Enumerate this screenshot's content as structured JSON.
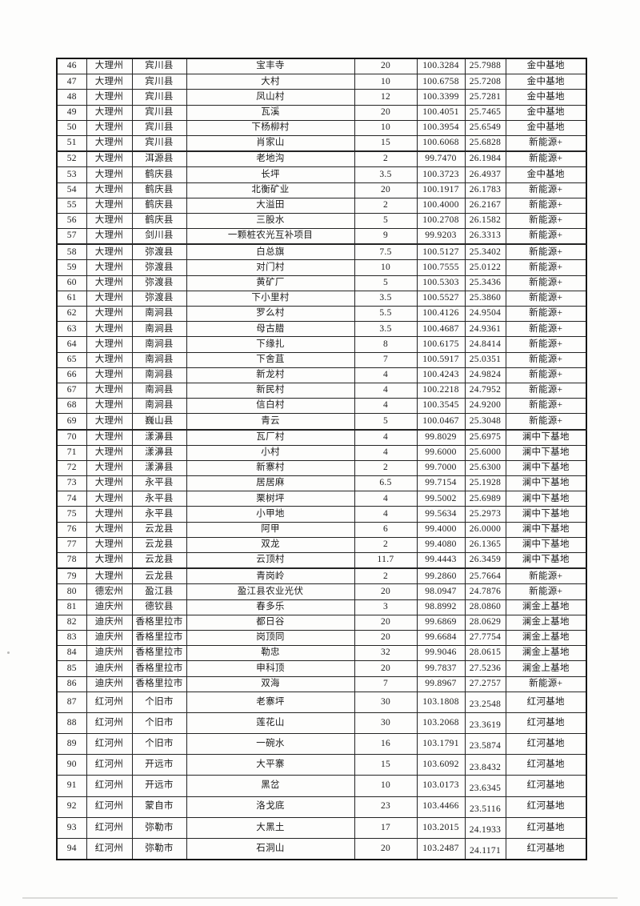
{
  "colors": {
    "paper": "#fdfdfc",
    "ink": "#1b1b1b",
    "table_border": "#242424"
  },
  "table": {
    "rows": [
      [
        "46",
        "大理州",
        "宾川县",
        "宝丰寺",
        "20",
        "100.3284",
        "25.7988",
        "金中基地"
      ],
      [
        "47",
        "大理州",
        "宾川县",
        "大村",
        "10",
        "100.6758",
        "25.7208",
        "金中基地"
      ],
      [
        "48",
        "大理州",
        "宾川县",
        "凤山村",
        "12",
        "100.3399",
        "25.7281",
        "金中基地"
      ],
      [
        "49",
        "大理州",
        "宾川县",
        "瓦溪",
        "20",
        "100.4051",
        "25.7465",
        "金中基地"
      ],
      [
        "50",
        "大理州",
        "宾川县",
        "下杨柳村",
        "10",
        "100.3954",
        "25.6549",
        "金中基地"
      ],
      [
        "51",
        "大理州",
        "宾川县",
        "肖家山",
        "15",
        "100.6068",
        "25.6828",
        "新能源+"
      ],
      [
        "52",
        "大理州",
        "洱源县",
        "老地沟",
        "2",
        "99.7470",
        "26.1984",
        "新能源+"
      ],
      [
        "53",
        "大理州",
        "鹤庆县",
        "长坪",
        "3.5",
        "100.3723",
        "26.4937",
        "金中基地"
      ],
      [
        "54",
        "大理州",
        "鹤庆县",
        "北衡矿业",
        "20",
        "100.1917",
        "26.1783",
        "新能源+"
      ],
      [
        "55",
        "大理州",
        "鹤庆县",
        "大溢田",
        "2",
        "100.4000",
        "26.2167",
        "新能源+"
      ],
      [
        "56",
        "大理州",
        "鹤庆县",
        "三股水",
        "5",
        "100.2708",
        "26.1582",
        "新能源+"
      ],
      [
        "57",
        "大理州",
        "剑川县",
        "一颗桩农光互补项目",
        "9",
        "99.9203",
        "26.3313",
        "新能源+"
      ],
      [
        "58",
        "大理州",
        "弥渡县",
        "白总旗",
        "7.5",
        "100.5127",
        "25.3402",
        "新能源+"
      ],
      [
        "59",
        "大理州",
        "弥渡县",
        "对门村",
        "10",
        "100.7555",
        "25.0122",
        "新能源+"
      ],
      [
        "60",
        "大理州",
        "弥渡县",
        "黄矿厂",
        "5",
        "100.5303",
        "25.3436",
        "新能源+"
      ],
      [
        "61",
        "大理州",
        "弥渡县",
        "下小里村",
        "3.5",
        "100.5527",
        "25.3860",
        "新能源+"
      ],
      [
        "62",
        "大理州",
        "南涧县",
        "罗么村",
        "5.5",
        "100.4126",
        "24.9504",
        "新能源+"
      ],
      [
        "63",
        "大理州",
        "南涧县",
        "母古腊",
        "3.5",
        "100.4687",
        "24.9361",
        "新能源+"
      ],
      [
        "64",
        "大理州",
        "南涧县",
        "下缘扎",
        "8",
        "100.6175",
        "24.8414",
        "新能源+"
      ],
      [
        "65",
        "大理州",
        "南涧县",
        "下舍苴",
        "7",
        "100.5917",
        "25.0351",
        "新能源+"
      ],
      [
        "66",
        "大理州",
        "南涧县",
        "新龙村",
        "4",
        "100.4243",
        "24.9824",
        "新能源+"
      ],
      [
        "67",
        "大理州",
        "南涧县",
        "新民村",
        "4",
        "100.2218",
        "24.7952",
        "新能源+"
      ],
      [
        "68",
        "大理州",
        "南涧县",
        "信白村",
        "4",
        "100.3545",
        "24.9200",
        "新能源+"
      ],
      [
        "69",
        "大理州",
        "巍山县",
        "青云",
        "5",
        "100.0467",
        "25.3048",
        "新能源+"
      ],
      [
        "70",
        "大理州",
        "漾濞县",
        "瓦厂村",
        "4",
        "99.8029",
        "25.6975",
        "澜中下基地"
      ],
      [
        "71",
        "大理州",
        "漾濞县",
        "小村",
        "4",
        "99.6000",
        "25.6000",
        "澜中下基地"
      ],
      [
        "72",
        "大理州",
        "漾濞县",
        "新寨村",
        "2",
        "99.7000",
        "25.6300",
        "澜中下基地"
      ],
      [
        "73",
        "大理州",
        "永平县",
        "居居麻",
        "6.5",
        "99.7154",
        "25.1928",
        "澜中下基地"
      ],
      [
        "74",
        "大理州",
        "永平县",
        "栗树坪",
        "4",
        "99.5002",
        "25.6989",
        "澜中下基地"
      ],
      [
        "75",
        "大理州",
        "永平县",
        "小甲地",
        "4",
        "99.5634",
        "25.2973",
        "澜中下基地"
      ],
      [
        "76",
        "大理州",
        "云龙县",
        "阿甲",
        "6",
        "99.4000",
        "26.0000",
        "澜中下基地"
      ],
      [
        "77",
        "大理州",
        "云龙县",
        "双龙",
        "2",
        "99.4080",
        "26.1365",
        "澜中下基地"
      ],
      [
        "78",
        "大理州",
        "云龙县",
        "云顶村",
        "11.7",
        "99.4443",
        "26.3459",
        "澜中下基地"
      ],
      [
        "79",
        "大理州",
        "云龙县",
        "青岗岭",
        "2",
        "99.2860",
        "25.7664",
        "新能源+"
      ],
      [
        "80",
        "德宏州",
        "盈江县",
        "盈江县农业光伏",
        "20",
        "98.0947",
        "24.7876",
        "新能源+"
      ],
      [
        "81",
        "迪庆州",
        "德钦县",
        "春多乐",
        "3",
        "98.8992",
        "28.0860",
        "澜金上基地"
      ],
      [
        "82",
        "迪庆州",
        "香格里拉市",
        "都日谷",
        "20",
        "99.6869",
        "28.0629",
        "澜金上基地"
      ],
      [
        "83",
        "迪庆州",
        "香格里拉市",
        "岗顶同",
        "20",
        "99.6684",
        "27.7754",
        "澜金上基地"
      ],
      [
        "84",
        "迪庆州",
        "香格里拉市",
        "勒忠",
        "32",
        "99.9046",
        "28.0615",
        "澜金上基地"
      ],
      [
        "85",
        "迪庆州",
        "香格里拉市",
        "申科顶",
        "20",
        "99.7837",
        "27.5236",
        "澜金上基地"
      ],
      [
        "86",
        "迪庆州",
        "香格里拉市",
        "双海",
        "7",
        "99.8967",
        "27.2757",
        "新能源+"
      ],
      [
        "87",
        "红河州",
        "个旧市",
        "老寨坪",
        "30",
        "103.1808",
        "23.2548",
        "红河基地"
      ],
      [
        "88",
        "红河州",
        "个旧市",
        "莲花山",
        "30",
        "103.2068",
        "23.3619",
        "红河基地"
      ],
      [
        "89",
        "红河州",
        "个旧市",
        "一碗水",
        "16",
        "103.1791",
        "23.5874",
        "红河基地"
      ],
      [
        "90",
        "红河州",
        "开远市",
        "大平寨",
        "15",
        "103.6092",
        "23.8432",
        "红河基地"
      ],
      [
        "91",
        "红河州",
        "开远市",
        "黑岔",
        "10",
        "103.0173",
        "23.6345",
        "红河基地"
      ],
      [
        "92",
        "红河州",
        "蒙自市",
        "洛戈底",
        "23",
        "103.4466",
        "23.5116",
        "红河基地"
      ],
      [
        "93",
        "红河州",
        "弥勒市",
        "大黑土",
        "17",
        "103.2015",
        "24.1933",
        "红河基地"
      ],
      [
        "94",
        "红河州",
        "弥勒市",
        "石洞山",
        "20",
        "103.2487",
        "24.1171",
        "红河基地"
      ]
    ]
  }
}
